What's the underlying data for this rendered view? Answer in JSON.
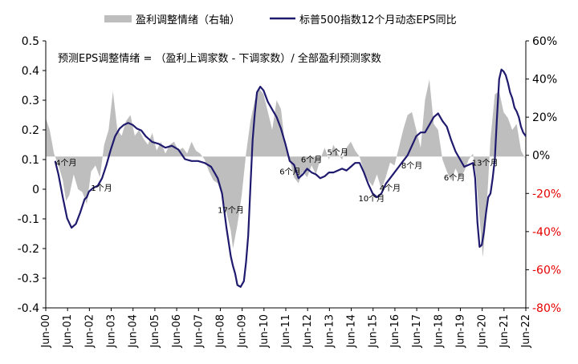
{
  "chart_data": {
    "type": "line",
    "legend": {
      "position": "top",
      "items": [
        {
          "label": "盈利调整情绪（右轴）",
          "kind": "area",
          "color": "#BEBEBE"
        },
        {
          "label": "标普500指数12个月动态EPS同比",
          "kind": "line",
          "color": "#1F1A6E"
        }
      ]
    },
    "annotation_formula": "预测EPS调整情绪 = （盈利上调家数 - 下调家数）/ 全部盈利预测家数",
    "left_axis": {
      "min": -0.4,
      "max": 0.5,
      "ticks": [
        "0.5",
        "0.4",
        "0.3",
        "0.2",
        "0.1",
        "0",
        "-0.1",
        "-0.2",
        "-0.3",
        "-0.4"
      ],
      "tick_values": [
        0.5,
        0.4,
        0.3,
        0.2,
        0.1,
        0,
        -0.1,
        -0.2,
        -0.3,
        -0.4
      ],
      "color": "#000000"
    },
    "right_axis": {
      "min": -80,
      "max": 60,
      "ticks": [
        "60%",
        "40%",
        "20%",
        "0%",
        "-20%",
        "-40%",
        "-60%",
        "-80%"
      ],
      "tick_values": [
        60,
        40,
        20,
        0,
        -20,
        -40,
        -60,
        -80
      ],
      "positive_color": "#000000",
      "negative_color": "#E60000"
    },
    "x_axis": {
      "start": 2000.42,
      "end": 2022.42,
      "labels": [
        "Jun-00",
        "Jun-01",
        "Jun-02",
        "Jun-03",
        "Jun-04",
        "Jun-05",
        "Jun-06",
        "Jun-07",
        "Jun-08",
        "Jun-09",
        "Jun-10",
        "Jun-11",
        "Jun-12",
        "Jun-13",
        "Jun-14",
        "Jun-15",
        "Jun-16",
        "Jun-17",
        "Jun-18",
        "Jun-19",
        "Jun-20",
        "Jun-21",
        "Jun-22"
      ],
      "label_years": [
        2000.42,
        2001.42,
        2002.42,
        2003.42,
        2004.42,
        2005.42,
        2006.42,
        2007.42,
        2008.42,
        2009.42,
        2010.42,
        2011.42,
        2012.42,
        2013.42,
        2014.42,
        2015.42,
        2016.42,
        2017.42,
        2018.42,
        2019.42,
        2020.42,
        2021.42,
        2022.42
      ]
    },
    "series": [
      {
        "name": "盈利调整情绪（右轴）",
        "axis": "left",
        "kind": "area",
        "baseline": 0.11,
        "x": [
          2000.42,
          2000.6,
          2000.8,
          2001.0,
          2001.2,
          2001.35,
          2001.5,
          2001.7,
          2001.9,
          2002.1,
          2002.3,
          2002.5,
          2002.7,
          2002.9,
          2003.1,
          2003.3,
          2003.5,
          2003.7,
          2003.9,
          2004.1,
          2004.3,
          2004.5,
          2004.7,
          2004.9,
          2005.1,
          2005.3,
          2005.5,
          2005.7,
          2005.9,
          2006.1,
          2006.3,
          2006.5,
          2006.7,
          2006.9,
          2007.1,
          2007.3,
          2007.5,
          2007.7,
          2007.9,
          2008.1,
          2008.3,
          2008.5,
          2008.7,
          2008.9,
          2009.0,
          2009.2,
          2009.4,
          2009.6,
          2009.8,
          2010.0,
          2010.2,
          2010.4,
          2010.6,
          2010.8,
          2011.0,
          2011.2,
          2011.4,
          2011.6,
          2011.8,
          2012.0,
          2012.2,
          2012.4,
          2012.6,
          2012.8,
          2013.0,
          2013.2,
          2013.4,
          2013.6,
          2013.8,
          2014.0,
          2014.2,
          2014.4,
          2014.6,
          2014.8,
          2015.0,
          2015.2,
          2015.4,
          2015.6,
          2015.8,
          2016.0,
          2016.2,
          2016.4,
          2016.6,
          2016.8,
          2017.0,
          2017.2,
          2017.4,
          2017.6,
          2017.8,
          2018.0,
          2018.2,
          2018.4,
          2018.6,
          2018.8,
          2019.0,
          2019.2,
          2019.4,
          2019.6,
          2019.8,
          2020.0,
          2020.15,
          2020.3,
          2020.45,
          2020.6,
          2020.8,
          2021.0,
          2021.2,
          2021.4,
          2021.6,
          2021.8,
          2022.0,
          2022.2,
          2022.42
        ],
        "values": [
          0.24,
          0.2,
          0.12,
          0.08,
          0.03,
          -0.04,
          -0.02,
          0.05,
          0.0,
          -0.01,
          -0.05,
          0.06,
          0.08,
          0.04,
          0.15,
          0.2,
          0.33,
          0.2,
          0.18,
          0.23,
          0.25,
          0.18,
          0.2,
          0.17,
          0.15,
          0.19,
          0.13,
          0.16,
          0.12,
          0.15,
          0.16,
          0.13,
          0.14,
          0.12,
          0.16,
          0.13,
          0.12,
          0.1,
          0.06,
          0.03,
          0.02,
          -0.02,
          -0.08,
          -0.14,
          -0.2,
          -0.12,
          -0.02,
          0.12,
          0.23,
          0.3,
          0.34,
          0.32,
          0.26,
          0.2,
          0.3,
          0.27,
          0.14,
          0.1,
          0.04,
          0.02,
          0.06,
          0.04,
          0.08,
          0.05,
          0.1,
          0.14,
          0.1,
          0.15,
          0.12,
          0.1,
          0.14,
          0.16,
          0.13,
          0.11,
          0.06,
          0.03,
          0.01,
          0.05,
          0.0,
          0.04,
          0.09,
          0.08,
          0.14,
          0.2,
          0.25,
          0.26,
          0.2,
          0.14,
          0.3,
          0.37,
          0.22,
          0.2,
          0.1,
          0.06,
          0.03,
          0.07,
          0.04,
          0.06,
          0.1,
          0.12,
          0.04,
          -0.1,
          -0.23,
          -0.1,
          0.17,
          0.32,
          0.33,
          0.26,
          0.24,
          0.2,
          0.22,
          0.13,
          0.1
        ]
      },
      {
        "name": "标普500指数12个月动态EPS同比",
        "axis": "right",
        "kind": "line",
        "color": "#1F1A6E",
        "x": [
          2000.85,
          2001.0,
          2001.2,
          2001.4,
          2001.6,
          2001.8,
          2002.0,
          2002.2,
          2002.3,
          2002.4,
          2002.6,
          2002.8,
          2003.0,
          2003.2,
          2003.4,
          2003.6,
          2003.8,
          2004.0,
          2004.2,
          2004.4,
          2004.6,
          2004.8,
          2005.0,
          2005.3,
          2005.6,
          2005.9,
          2006.2,
          2006.5,
          2006.8,
          2007.1,
          2007.4,
          2007.7,
          2008.0,
          2008.3,
          2008.5,
          2008.7,
          2008.9,
          2009.0,
          2009.1,
          2009.2,
          2009.35,
          2009.5,
          2009.6,
          2009.7,
          2009.8,
          2009.9,
          2010.0,
          2010.1,
          2010.25,
          2010.4,
          2010.6,
          2010.8,
          2011.0,
          2011.2,
          2011.4,
          2011.6,
          2011.8,
          2012.0,
          2012.2,
          2012.4,
          2012.6,
          2012.8,
          2013.0,
          2013.2,
          2013.4,
          2013.6,
          2013.8,
          2014.0,
          2014.2,
          2014.4,
          2014.6,
          2014.8,
          2015.0,
          2015.2,
          2015.4,
          2015.6,
          2015.8,
          2016.0,
          2016.2,
          2016.4,
          2016.6,
          2016.8,
          2017.0,
          2017.2,
          2017.4,
          2017.6,
          2017.8,
          2018.0,
          2018.2,
          2018.4,
          2018.6,
          2018.8,
          2019.0,
          2019.2,
          2019.4,
          2019.6,
          2019.8,
          2020.0,
          2020.1,
          2020.2,
          2020.3,
          2020.4,
          2020.5,
          2020.6,
          2020.7,
          2020.8,
          2020.9,
          2021.0,
          2021.1,
          2021.2,
          2021.3,
          2021.4,
          2021.5,
          2021.6,
          2021.7,
          2021.8,
          2021.9,
          2022.0,
          2022.1,
          2022.2,
          2022.3,
          2022.42
        ],
        "values": [
          -3,
          -10,
          -22,
          -33,
          -38,
          -36,
          -30,
          -23,
          -22,
          -19,
          -17,
          -16,
          -12,
          -5,
          3,
          10,
          14,
          16,
          17,
          16,
          14,
          13,
          10,
          7,
          6,
          4,
          5,
          3,
          -2,
          -3,
          -3,
          -4,
          -6,
          -12,
          -20,
          -38,
          -53,
          -58,
          -62,
          -68,
          -69,
          -66,
          -56,
          -42,
          -16,
          8,
          22,
          33,
          36,
          34,
          28,
          24,
          20,
          14,
          6,
          -3,
          -5,
          -12,
          -10,
          -7,
          -9,
          -10,
          -12,
          -11,
          -9,
          -9,
          -8,
          -7,
          -8,
          -6,
          -4,
          -4,
          -9,
          -15,
          -20,
          -22,
          -20,
          -15,
          -12,
          -9,
          -6,
          -3,
          0,
          5,
          10,
          12,
          12,
          16,
          20,
          22,
          18,
          15,
          8,
          2,
          -2,
          -6,
          -5,
          -4,
          -12,
          -35,
          -48,
          -47,
          -40,
          -30,
          -22,
          -20,
          -12,
          -2,
          20,
          40,
          45,
          44,
          42,
          38,
          33,
          30,
          25,
          23,
          20,
          15,
          12,
          10
        ]
      }
    ],
    "annotations": [
      {
        "text": "4个月",
        "x": 2001.35,
        "value": 0.08
      },
      {
        "text": "1个月",
        "x": 2002.98,
        "value": -0.005
      },
      {
        "text": "17个月",
        "x": 2008.9,
        "value": -0.08
      },
      {
        "text": "6个月",
        "x": 2011.62,
        "value": 0.05
      },
      {
        "text": "6个月",
        "x": 2012.6,
        "value": 0.09
      },
      {
        "text": "5个月",
        "x": 2013.8,
        "value": 0.115
      },
      {
        "text": "10个月",
        "x": 2015.35,
        "value": -0.04
      },
      {
        "text": "4个月",
        "x": 2016.2,
        "value": -0.005
      },
      {
        "text": "8个月",
        "x": 2017.2,
        "value": 0.07
      },
      {
        "text": "6个月",
        "x": 2019.15,
        "value": 0.03
      },
      {
        "text": "13个月",
        "x": 2020.55,
        "value": 0.08
      }
    ]
  }
}
